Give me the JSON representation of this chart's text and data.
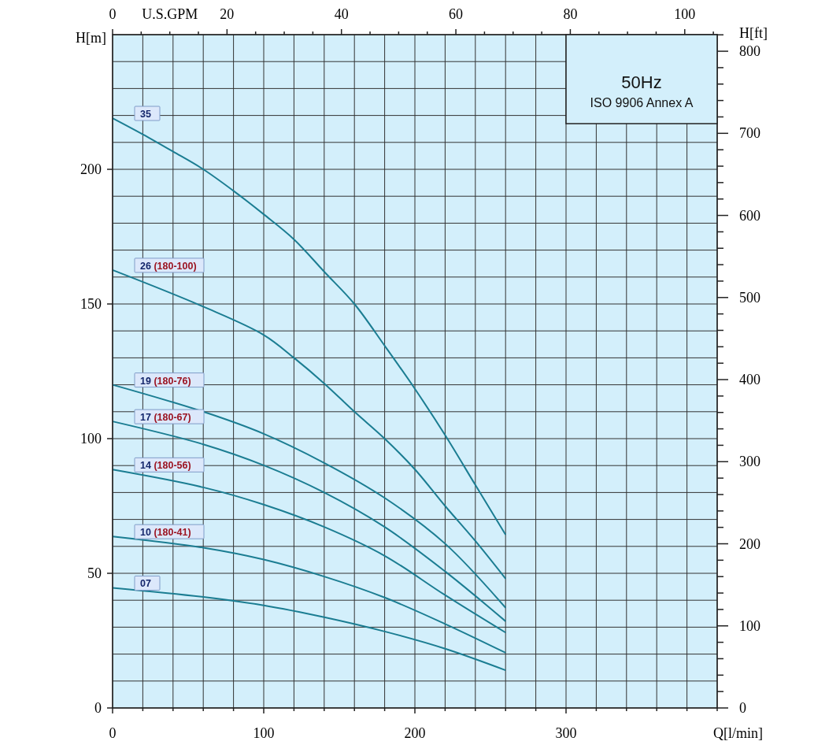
{
  "chart_data": {
    "type": "line",
    "xlabel": "Q[l/min]",
    "ylabel": "H[m]",
    "y2label": "H[ft]",
    "x2label": "U.S.GPM",
    "xlim": [
      0,
      400
    ],
    "xticks": [
      0,
      {
        "value": 20,
        "label": null
      },
      {
        "value": 40,
        "label": null
      },
      {
        "value": 60,
        "label": null
      },
      {
        "value": 80,
        "label": null
      },
      100,
      {
        "value": 120,
        "label": null
      },
      {
        "value": 140,
        "label": null
      },
      {
        "value": 160,
        "label": null
      },
      {
        "value": 180,
        "label": null
      },
      200,
      {
        "value": 220,
        "label": null
      },
      {
        "value": 240,
        "label": null
      },
      {
        "value": 260,
        "label": null
      },
      {
        "value": 280,
        "label": null
      },
      300,
      {
        "value": 320,
        "label": null
      },
      {
        "value": 340,
        "label": null
      },
      {
        "value": 360,
        "label": null
      },
      {
        "value": 380,
        "label": null
      },
      {
        "value": 400,
        "label": null
      }
    ],
    "ylim": [
      0,
      250
    ],
    "yticks": [
      0,
      {
        "value": 10,
        "label": null
      },
      {
        "value": 20,
        "label": null
      },
      {
        "value": 30,
        "label": null
      },
      {
        "value": 40,
        "label": null
      },
      50,
      {
        "value": 60,
        "label": null
      },
      {
        "value": 70,
        "label": null
      },
      {
        "value": 80,
        "label": null
      },
      {
        "value": 90,
        "label": null
      },
      100,
      {
        "value": 110,
        "label": null
      },
      {
        "value": 120,
        "label": null
      },
      {
        "value": 130,
        "label": null
      },
      {
        "value": 140,
        "label": null
      },
      150,
      {
        "value": 160,
        "label": null
      },
      {
        "value": 170,
        "label": null
      },
      {
        "value": 180,
        "label": null
      },
      {
        "value": 190,
        "label": null
      },
      200,
      {
        "value": 210,
        "label": null
      },
      {
        "value": 220,
        "label": null
      },
      {
        "value": 230,
        "label": null
      },
      {
        "value": 240,
        "label": null
      },
      {
        "value": 250,
        "label": null
      }
    ],
    "x2lim": [
      0,
      105.67
    ],
    "x2ticks": [
      0,
      {
        "value": 5,
        "label": null
      },
      {
        "value": 10,
        "label": null
      },
      {
        "value": 15,
        "label": null
      },
      20,
      {
        "value": 25,
        "label": null
      },
      {
        "value": 30,
        "label": null
      },
      {
        "value": 35,
        "label": null
      },
      40,
      {
        "value": 45,
        "label": null
      },
      {
        "value": 50,
        "label": null
      },
      {
        "value": 55,
        "label": null
      },
      60,
      {
        "value": 65,
        "label": null
      },
      {
        "value": 70,
        "label": null
      },
      {
        "value": 75,
        "label": null
      },
      80,
      {
        "value": 85,
        "label": null
      },
      {
        "value": 90,
        "label": null
      },
      {
        "value": 95,
        "label": null
      },
      100,
      {
        "value": 105,
        "label": null
      }
    ],
    "y2lim": [
      0,
      820.21
    ],
    "y2ticks": [
      0,
      {
        "value": 20,
        "label": null
      },
      {
        "value": 40,
        "label": null
      },
      {
        "value": 60,
        "label": null
      },
      {
        "value": 80,
        "label": null
      },
      100,
      {
        "value": 120,
        "label": null
      },
      {
        "value": 140,
        "label": null
      },
      {
        "value": 160,
        "label": null
      },
      {
        "value": 180,
        "label": null
      },
      200,
      {
        "value": 220,
        "label": null
      },
      {
        "value": 240,
        "label": null
      },
      {
        "value": 260,
        "label": null
      },
      {
        "value": 280,
        "label": null
      },
      300,
      {
        "value": 320,
        "label": null
      },
      {
        "value": 340,
        "label": null
      },
      {
        "value": 360,
        "label": null
      },
      {
        "value": 380,
        "label": null
      },
      400,
      {
        "value": 420,
        "label": null
      },
      {
        "value": 440,
        "label": null
      },
      {
        "value": 460,
        "label": null
      },
      {
        "value": 480,
        "label": null
      },
      500,
      {
        "value": 520,
        "label": null
      },
      {
        "value": 540,
        "label": null
      },
      {
        "value": 560,
        "label": null
      },
      {
        "value": 580,
        "label": null
      },
      600,
      {
        "value": 620,
        "label": null
      },
      {
        "value": 640,
        "label": null
      },
      {
        "value": 660,
        "label": null
      },
      {
        "value": 680,
        "label": null
      },
      700,
      {
        "value": 720,
        "label": null
      },
      {
        "value": 740,
        "label": null
      },
      {
        "value": 760,
        "label": null
      },
      {
        "value": 780,
        "label": null
      },
      800,
      {
        "value": 820,
        "label": null
      }
    ],
    "grid": true,
    "legend": false,
    "marker": "none",
    "line_style": "solid",
    "annotations": [
      "50Hz",
      "ISO 9906 Annex A"
    ],
    "series": [
      {
        "name": "35",
        "color": "#1b7d92",
        "x": [
          0,
          20,
          40,
          60,
          80,
          100,
          120,
          140,
          160,
          180,
          200,
          220,
          240,
          260
        ],
        "values": [
          219,
          213,
          206.6,
          200,
          192,
          183.3,
          174,
          162,
          150,
          134.5,
          118.5,
          101.3,
          82.8,
          64.3
        ]
      },
      {
        "name": "26 (180-100)",
        "color": "#1b7d92",
        "x": [
          0,
          60,
          100,
          120,
          140,
          160,
          180,
          200,
          220,
          240,
          260
        ],
        "values": [
          162.6,
          149,
          138.5,
          130,
          120.5,
          110,
          100,
          88.6,
          75,
          62,
          48
        ]
      },
      {
        "name": "19 (180-76)",
        "color": "#1b7d92",
        "x": [
          0,
          60,
          100,
          140,
          180,
          220,
          260
        ],
        "values": [
          120,
          110,
          101.8,
          91,
          78,
          61,
          37.2
        ]
      },
      {
        "name": "17 (180-67)",
        "color": "#1b7d92",
        "x": [
          0,
          60,
          100,
          140,
          180,
          220,
          260
        ],
        "values": [
          106.4,
          97.9,
          90.1,
          80,
          67.2,
          50.7,
          32.2
        ]
      },
      {
        "name": "14 (180-56)",
        "color": "#1b7d92",
        "x": [
          0,
          60,
          100,
          140,
          180,
          220,
          260
        ],
        "values": [
          88.5,
          81.9,
          75.5,
          67.2,
          56.5,
          41.9,
          28
        ]
      },
      {
        "name": "10 (180-41)",
        "color": "#1b7d92",
        "x": [
          0,
          60,
          100,
          140,
          180,
          220,
          260
        ],
        "values": [
          63.7,
          59.5,
          55.1,
          48.8,
          41,
          31.2,
          20.5
        ]
      },
      {
        "name": "07",
        "color": "#1b7d92",
        "x": [
          0,
          60,
          100,
          140,
          180,
          220,
          260
        ],
        "values": [
          44.6,
          41.2,
          38.1,
          33.7,
          28.4,
          22,
          14
        ]
      }
    ]
  }
}
